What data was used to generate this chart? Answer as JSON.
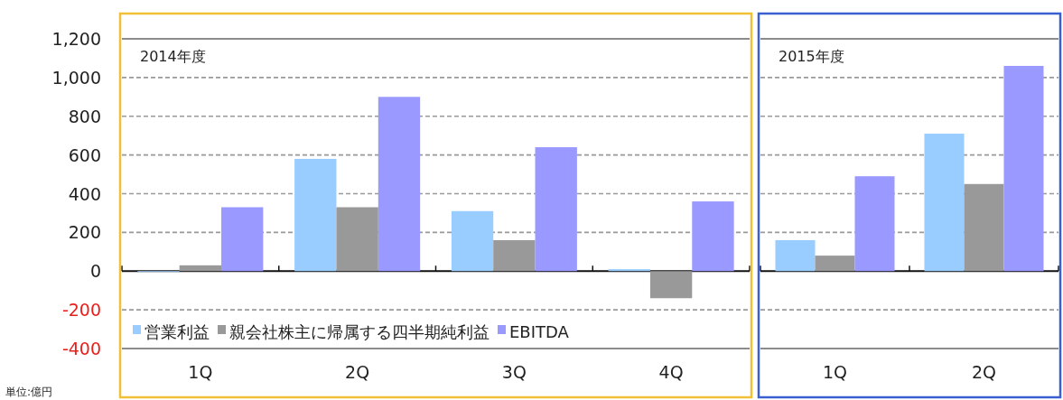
{
  "chart_data": [
    {
      "type": "bar",
      "title": "2014年度",
      "categories": [
        "1Q",
        "2Q",
        "3Q",
        "4Q"
      ],
      "series": [
        {
          "name": "営業利益",
          "color": "#99ccff",
          "values": [
            0,
            580,
            310,
            10
          ]
        },
        {
          "name": "親会社株主に帰属する四半期純利益",
          "color": "#999999",
          "values": [
            30,
            330,
            160,
            -140
          ]
        },
        {
          "name": "EBITDA",
          "color": "#9999ff",
          "values": [
            330,
            900,
            640,
            360
          ]
        }
      ],
      "ylim": [
        -400,
        1200
      ],
      "yticks": [
        -400,
        -200,
        0,
        200,
        400,
        600,
        800,
        {
          "value": 1000,
          "label": "1,000"
        },
        {
          "value": 1200,
          "label": "1,200"
        }
      ],
      "grid": "y",
      "legend": "bottom",
      "annotations": [
        "単位:億円"
      ]
    },
    {
      "type": "bar",
      "title": "2015年度",
      "categories": [
        "1Q",
        "2Q"
      ],
      "series": [
        {
          "color": "#99ccff",
          "values": [
            160,
            710
          ]
        },
        {
          "color": "#999999",
          "values": [
            80,
            450
          ]
        },
        {
          "color": "#9999ff",
          "values": [
            490,
            1060
          ]
        }
      ],
      "ylim": [
        -400,
        1200
      ],
      "yticks": [
        -400,
        -200,
        0,
        200,
        400,
        600,
        800,
        1000,
        1200
      ],
      "grid": "y",
      "tick_labels": "x"
    }
  ]
}
